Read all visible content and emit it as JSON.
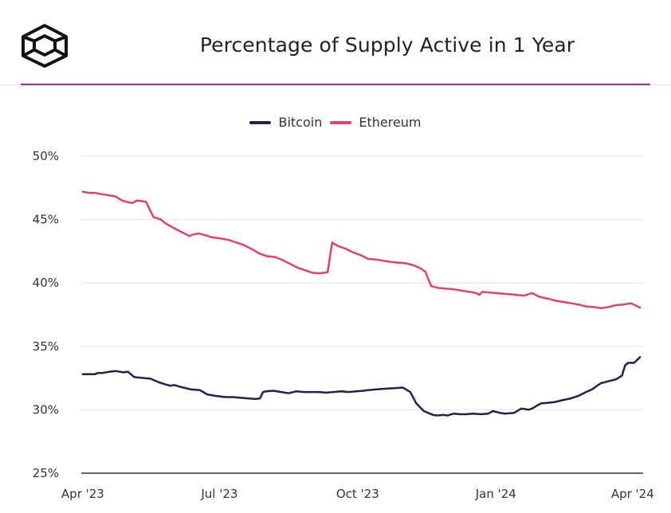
{
  "title": "Percentage of Supply Active in 1 Year",
  "chart_data": {
    "type": "line",
    "title": "Percentage of Supply Active in 1 Year",
    "xlabel": "",
    "ylabel": "",
    "x_tick_labels": [
      "Apr '23",
      "Jul '23",
      "Oct '23",
      "Jan '24",
      "Apr '24"
    ],
    "x_tick_days": [
      0,
      91,
      183,
      275,
      366
    ],
    "y_tick_labels": [
      "25%",
      "30%",
      "35%",
      "40%",
      "45%",
      "50%"
    ],
    "y_ticks": [
      25,
      30,
      35,
      40,
      45,
      50
    ],
    "ylim": [
      25,
      50
    ],
    "grid": true,
    "legend_position": "top-center",
    "series": [
      {
        "name": "Bitcoin",
        "color": "#23204a",
        "x": [
          0,
          8,
          10,
          13,
          18,
          22,
          27,
          30,
          34,
          36,
          45,
          50,
          55,
          58,
          61,
          65,
          72,
          78,
          83,
          86,
          88,
          95,
          100,
          110,
          115,
          118,
          120,
          122,
          127,
          132,
          137,
          142,
          147,
          152,
          157,
          162,
          167,
          172,
          177,
          182,
          187,
          190,
          195,
          200,
          208,
          213,
          218,
          222,
          227,
          231,
          233,
          236,
          240,
          243,
          247,
          251,
          255,
          260,
          265,
          270,
          273,
          278,
          281,
          287,
          292,
          297,
          300,
          302,
          305,
          310,
          314,
          319,
          325,
          330,
          335,
          339,
          343,
          345,
          350,
          355,
          359,
          361,
          363,
          367,
          371
        ],
        "values": [
          32.8,
          32.8,
          32.9,
          32.9,
          33.0,
          33.05,
          32.95,
          33.0,
          32.6,
          32.55,
          32.45,
          32.2,
          32.0,
          31.9,
          31.95,
          31.8,
          31.6,
          31.55,
          31.2,
          31.15,
          31.1,
          31.0,
          31.0,
          30.9,
          30.85,
          30.9,
          31.4,
          31.45,
          31.5,
          31.4,
          31.3,
          31.45,
          31.4,
          31.4,
          31.4,
          31.35,
          31.4,
          31.45,
          31.4,
          31.45,
          31.5,
          31.55,
          31.6,
          31.65,
          31.7,
          31.75,
          31.4,
          30.5,
          29.9,
          29.7,
          29.6,
          29.55,
          29.6,
          29.55,
          29.7,
          29.65,
          29.65,
          29.7,
          29.65,
          29.7,
          29.9,
          29.75,
          29.7,
          29.75,
          30.1,
          30.0,
          30.15,
          30.3,
          30.5,
          30.55,
          30.6,
          30.75,
          30.9,
          31.1,
          31.4,
          31.6,
          31.95,
          32.1,
          32.25,
          32.4,
          32.7,
          33.5,
          33.7,
          33.7,
          34.15
        ]
      },
      {
        "name": "Ethereum",
        "color": "#e0426a",
        "x": [
          0,
          4,
          8,
          13,
          18,
          22,
          26,
          29,
          33,
          36,
          42,
          47,
          52,
          55,
          61,
          66,
          71,
          73,
          77,
          82,
          86,
          92,
          97,
          102,
          107,
          112,
          118,
          123,
          128,
          133,
          138,
          143,
          148,
          153,
          158,
          160,
          163,
          166,
          167,
          170,
          175,
          180,
          185,
          190,
          195,
          200,
          205,
          210,
          215,
          220,
          224,
          228,
          230,
          232,
          237,
          242,
          247,
          252,
          257,
          262,
          264,
          266,
          270,
          275,
          280,
          285,
          289,
          294,
          299,
          304,
          310,
          315,
          320,
          325,
          330,
          335,
          340,
          343,
          345,
          350,
          355,
          360,
          365,
          371
        ],
        "values": [
          47.2,
          47.1,
          47.1,
          47.0,
          46.9,
          46.8,
          46.5,
          46.4,
          46.3,
          46.5,
          46.4,
          45.2,
          45.0,
          44.7,
          44.3,
          44.0,
          43.7,
          43.8,
          43.9,
          43.75,
          43.6,
          43.5,
          43.4,
          43.2,
          43.0,
          42.7,
          42.3,
          42.1,
          42.05,
          41.8,
          41.5,
          41.2,
          41.0,
          40.8,
          40.75,
          40.8,
          40.85,
          43.2,
          43.1,
          42.9,
          42.7,
          42.4,
          42.2,
          41.9,
          41.85,
          41.75,
          41.65,
          41.6,
          41.55,
          41.4,
          41.2,
          40.9,
          40.3,
          39.75,
          39.6,
          39.55,
          39.5,
          39.4,
          39.3,
          39.2,
          39.05,
          39.3,
          39.25,
          39.2,
          39.15,
          39.1,
          39.05,
          39.0,
          39.2,
          38.9,
          38.75,
          38.6,
          38.5,
          38.4,
          38.3,
          38.15,
          38.1,
          38.05,
          38.0,
          38.1,
          38.25,
          38.3,
          38.4,
          38.05
        ]
      }
    ]
  }
}
